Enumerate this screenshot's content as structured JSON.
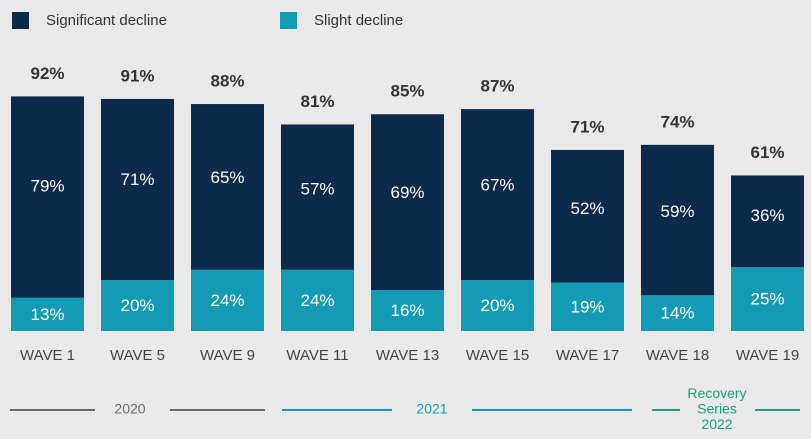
{
  "chart_data": {
    "type": "stacked_bar",
    "categories": [
      "WAVE 1",
      "WAVE 5",
      "WAVE 9",
      "WAVE 11",
      "WAVE 13",
      "WAVE 15",
      "WAVE 17",
      "WAVE 18",
      "WAVE 19"
    ],
    "series": [
      {
        "name": "Slight decline",
        "color": "#139bb5",
        "values": [
          13,
          20,
          24,
          24,
          16,
          20,
          19,
          14,
          25
        ],
        "value_labels": [
          "13%",
          "20%",
          "24%",
          "24%",
          "16%",
          "20%",
          "19%",
          "14%",
          "25%"
        ]
      },
      {
        "name": "Significant decline",
        "color": "#0c2a4a",
        "values": [
          79,
          71,
          65,
          57,
          69,
          67,
          52,
          59,
          36
        ],
        "value_labels": [
          "79%",
          "71%",
          "65%",
          "57%",
          "69%",
          "67%",
          "52%",
          "59%",
          "36%"
        ]
      }
    ],
    "totals": [
      92,
      91,
      88,
      81,
      85,
      87,
      71,
      74,
      61
    ],
    "total_labels": [
      "92%",
      "91%",
      "88%",
      "81%",
      "85%",
      "87%",
      "71%",
      "74%",
      "61%"
    ],
    "ylim": [
      0,
      100
    ],
    "legend": "top-left",
    "periods": [
      {
        "lines": [
          "2020"
        ],
        "color": "#6b6b6b"
      },
      {
        "lines": [
          "2021"
        ],
        "color": "#139bb5"
      },
      {
        "lines": [
          "Recovery",
          "Series",
          "2022"
        ],
        "color": "#1a9e7e"
      }
    ]
  }
}
